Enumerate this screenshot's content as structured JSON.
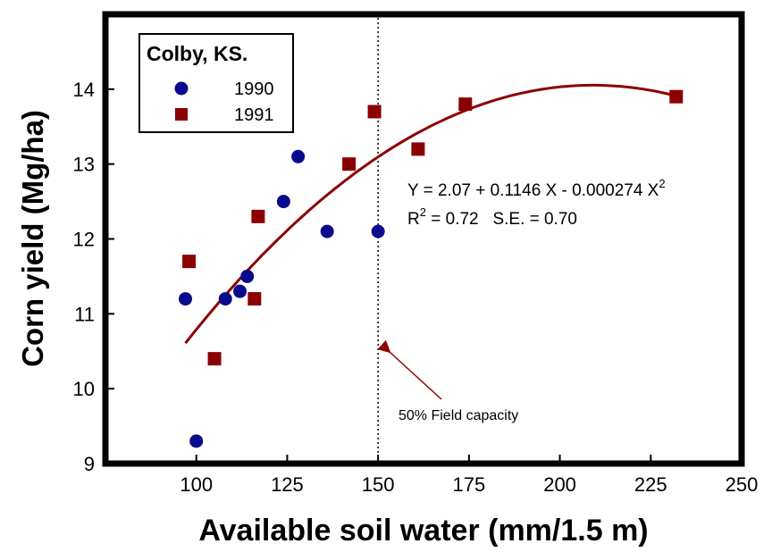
{
  "chart_data": {
    "type": "scatter",
    "xlabel": "Available soil water (mm/1.5 m)",
    "ylabel": "Corn yield (Mg/ha)",
    "xlim": [
      75,
      250
    ],
    "ylim": [
      9,
      15
    ],
    "xticks": [
      "100",
      "125",
      "150",
      "175",
      "200",
      "225",
      "250"
    ],
    "yticks": [
      "9",
      "10",
      "11",
      "12",
      "13",
      "14"
    ],
    "legend": {
      "title": "Colby, KS.",
      "position": "top-left",
      "entries": [
        "1990",
        "1991"
      ]
    },
    "series": [
      {
        "name": "1990",
        "marker": "circle",
        "color": "#0a0a8c",
        "points": [
          [
            97,
            11.2
          ],
          [
            100,
            9.3
          ],
          [
            108,
            11.2
          ],
          [
            112,
            11.3
          ],
          [
            114,
            11.5
          ],
          [
            124,
            12.5
          ],
          [
            128,
            13.1
          ],
          [
            136,
            12.1
          ],
          [
            150,
            12.1
          ]
        ]
      },
      {
        "name": "1991",
        "marker": "square",
        "color": "#8b0000",
        "points": [
          [
            98,
            11.7
          ],
          [
            105,
            10.4
          ],
          [
            116,
            11.2
          ],
          [
            117,
            12.3
          ],
          [
            142,
            13.0
          ],
          [
            149,
            13.7
          ],
          [
            161,
            13.2
          ],
          [
            174,
            13.8
          ],
          [
            232,
            13.9
          ]
        ]
      }
    ],
    "fit": {
      "color": "#8b0000",
      "intercept": 2.07,
      "linear": 0.1146,
      "quadratic": -0.000274,
      "x_range": [
        97,
        232
      ]
    },
    "reference_line": {
      "x": 150,
      "style": "dotted",
      "label": "50% Field capacity"
    },
    "annotations": {
      "equation_main": "Y = 2.07 + 0.1146 X - 0.000274 X",
      "equation_sup": "2",
      "r_prefix": "R",
      "r_sup": "2",
      "r_rest": " = 0.72   S.E. = 0.70"
    }
  }
}
